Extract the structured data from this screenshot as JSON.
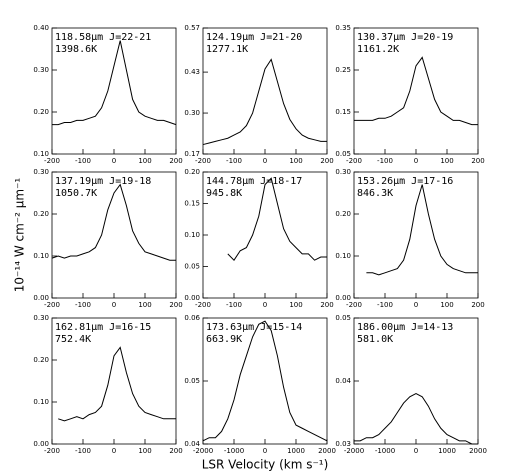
{
  "y_label": "10⁻¹⁴ W cm⁻² μm⁻¹",
  "x_label": "LSR Velocity (km s⁻¹)",
  "chart_data": [
    {
      "type": "line",
      "title": "118.58μm J=22-21",
      "subtitle": "1398.6K",
      "color": "#000000",
      "x": [
        -200,
        -180,
        -160,
        -140,
        -120,
        -100,
        -80,
        -60,
        -40,
        -20,
        0,
        20,
        40,
        60,
        80,
        100,
        120,
        140,
        160,
        180,
        200
      ],
      "values": [
        0.17,
        0.17,
        0.175,
        0.175,
        0.18,
        0.18,
        0.185,
        0.19,
        0.21,
        0.25,
        0.31,
        0.37,
        0.3,
        0.23,
        0.2,
        0.19,
        0.185,
        0.18,
        0.18,
        0.175,
        0.17
      ],
      "xlim": [
        -200,
        200
      ],
      "ylim": [
        0.1,
        0.4
      ],
      "xticks": [
        -200,
        -100,
        0,
        100,
        200
      ],
      "yticks": [
        {
          "value": 0.1,
          "label": "0.10"
        },
        {
          "value": 0.2,
          "label": "0.20"
        },
        {
          "value": 0.3,
          "label": "0.30"
        },
        {
          "value": 0.4,
          "label": "0.40"
        }
      ]
    },
    {
      "type": "line",
      "title": "124.19μm J=21-20",
      "subtitle": "1277.1K",
      "color": "#000000",
      "x": [
        -200,
        -180,
        -160,
        -140,
        -120,
        -100,
        -80,
        -60,
        -40,
        -20,
        0,
        20,
        40,
        60,
        80,
        100,
        120,
        140,
        160,
        180,
        200
      ],
      "values": [
        0.2,
        0.205,
        0.21,
        0.215,
        0.22,
        0.23,
        0.24,
        0.26,
        0.3,
        0.37,
        0.44,
        0.47,
        0.4,
        0.33,
        0.28,
        0.25,
        0.23,
        0.22,
        0.215,
        0.21,
        0.21
      ],
      "xlim": [
        -200,
        200
      ],
      "ylim": [
        0.17,
        0.57
      ],
      "xticks": [
        -200,
        -100,
        0,
        100,
        200
      ],
      "yticks": [
        0.17,
        {
          "value": 0.3,
          "label": "0.30"
        },
        0.43,
        0.57
      ]
    },
    {
      "type": "line",
      "title": "130.37μm J=20-19",
      "subtitle": "1161.2K",
      "color": "#000000",
      "x": [
        -200,
        -180,
        -160,
        -140,
        -120,
        -100,
        -80,
        -60,
        -40,
        -20,
        0,
        20,
        40,
        60,
        80,
        100,
        120,
        140,
        160,
        180,
        200
      ],
      "values": [
        0.13,
        0.13,
        0.13,
        0.13,
        0.135,
        0.135,
        0.14,
        0.15,
        0.16,
        0.2,
        0.26,
        0.28,
        0.23,
        0.18,
        0.15,
        0.14,
        0.13,
        0.13,
        0.125,
        0.12,
        0.12
      ],
      "xlim": [
        -200,
        200
      ],
      "ylim": [
        0.05,
        0.35
      ],
      "xticks": [
        -200,
        -100,
        0,
        100,
        200
      ],
      "yticks": [
        0.05,
        0.15,
        0.25,
        0.35
      ]
    },
    {
      "type": "line",
      "title": "137.19μm J=19-18",
      "subtitle": "1050.7K",
      "color": "#000000",
      "x": [
        -200,
        -180,
        -160,
        -140,
        -120,
        -100,
        -80,
        -60,
        -40,
        -20,
        0,
        20,
        40,
        60,
        80,
        100,
        120,
        140,
        160,
        180,
        200
      ],
      "values": [
        0.095,
        0.1,
        0.095,
        0.1,
        0.1,
        0.105,
        0.11,
        0.12,
        0.15,
        0.21,
        0.25,
        0.27,
        0.22,
        0.16,
        0.13,
        0.11,
        0.105,
        0.1,
        0.095,
        0.09,
        0.09
      ],
      "xlim": [
        -200,
        200
      ],
      "ylim": [
        0,
        0.3
      ],
      "xticks": [
        -200,
        -100,
        0,
        100,
        200
      ],
      "yticks": [
        {
          "value": 0,
          "label": "0.00"
        },
        {
          "value": 0.1,
          "label": "0.10"
        },
        {
          "value": 0.2,
          "label": "0.20"
        },
        {
          "value": 0.3,
          "label": "0.30"
        }
      ]
    },
    {
      "type": "line",
      "title": "144.78μm J=18-17",
      "subtitle": "945.8K",
      "color": "#000000",
      "x": [
        -120,
        -100,
        -80,
        -60,
        -40,
        -20,
        0,
        20,
        40,
        60,
        80,
        100,
        120,
        140,
        160,
        180,
        200
      ],
      "values": [
        0.07,
        0.06,
        0.075,
        0.08,
        0.1,
        0.13,
        0.18,
        0.19,
        0.15,
        0.11,
        0.09,
        0.08,
        0.07,
        0.07,
        0.06,
        0.065,
        0.065
      ],
      "xlim": [
        -200,
        200
      ],
      "ylim": [
        0,
        0.2
      ],
      "xticks": [
        -200,
        -100,
        0,
        100,
        200
      ],
      "yticks": [
        {
          "value": 0,
          "label": "0.00"
        },
        0.05,
        {
          "value": 0.1,
          "label": "0.10"
        },
        0.15,
        {
          "value": 0.2,
          "label": "0.20"
        }
      ]
    },
    {
      "type": "line",
      "title": "153.26μm J=17-16",
      "subtitle": "846.3K",
      "color": "#000000",
      "x": [
        -160,
        -140,
        -120,
        -100,
        -80,
        -60,
        -40,
        -20,
        0,
        20,
        40,
        60,
        80,
        100,
        120,
        140,
        160,
        180,
        200
      ],
      "values": [
        0.06,
        0.06,
        0.055,
        0.06,
        0.065,
        0.07,
        0.09,
        0.14,
        0.22,
        0.27,
        0.2,
        0.14,
        0.1,
        0.08,
        0.07,
        0.065,
        0.06,
        0.06,
        0.06
      ],
      "xlim": [
        -200,
        200
      ],
      "ylim": [
        0,
        0.3
      ],
      "xticks": [
        -200,
        -100,
        0,
        100,
        200
      ],
      "yticks": [
        {
          "value": 0,
          "label": "0.00"
        },
        {
          "value": 0.1,
          "label": "0.10"
        },
        {
          "value": 0.2,
          "label": "0.20"
        },
        {
          "value": 0.3,
          "label": "0.30"
        }
      ]
    },
    {
      "type": "line",
      "title": "162.81μm J=16-15",
      "subtitle": "752.4K",
      "color": "#000000",
      "x": [
        -180,
        -160,
        -140,
        -120,
        -100,
        -80,
        -60,
        -40,
        -20,
        0,
        20,
        40,
        60,
        80,
        100,
        120,
        140,
        160,
        180,
        200
      ],
      "values": [
        0.06,
        0.055,
        0.06,
        0.065,
        0.06,
        0.07,
        0.075,
        0.09,
        0.14,
        0.21,
        0.23,
        0.17,
        0.12,
        0.09,
        0.075,
        0.07,
        0.065,
        0.06,
        0.06,
        0.06
      ],
      "xlim": [
        -200,
        200
      ],
      "ylim": [
        0,
        0.3
      ],
      "xticks": [
        -200,
        -100,
        0,
        100,
        200
      ],
      "yticks": [
        {
          "value": 0,
          "label": "0.00"
        },
        {
          "value": 0.1,
          "label": "0.10"
        },
        {
          "value": 0.2,
          "label": "0.20"
        },
        {
          "value": 0.3,
          "label": "0.30"
        }
      ]
    },
    {
      "type": "line",
      "title": "173.63μm J=15-14",
      "subtitle": "663.9K",
      "color": "#000000",
      "x": [
        -2000,
        -1800,
        -1600,
        -1400,
        -1200,
        -1000,
        -800,
        -600,
        -400,
        -200,
        0,
        200,
        400,
        600,
        800,
        1000,
        1200,
        1400,
        1600,
        1800,
        2000
      ],
      "values": [
        0.0405,
        0.041,
        0.041,
        0.042,
        0.044,
        0.047,
        0.051,
        0.054,
        0.057,
        0.059,
        0.0595,
        0.058,
        0.054,
        0.049,
        0.045,
        0.043,
        0.0425,
        0.042,
        0.0415,
        0.041,
        0.0405
      ],
      "xlim": [
        -2000,
        2000
      ],
      "ylim": [
        0.04,
        0.06
      ],
      "xticks": [
        -2000,
        -1000,
        0,
        1000,
        2000
      ],
      "yticks": [
        0.04,
        0.05,
        0.06
      ]
    },
    {
      "type": "line",
      "title": "186.00μm J=14-13",
      "subtitle": "581.0K",
      "color": "#000000",
      "x": [
        -2000,
        -1800,
        -1600,
        -1400,
        -1200,
        -1000,
        -800,
        -600,
        -400,
        -200,
        0,
        200,
        400,
        600,
        800,
        1000,
        1200,
        1400,
        1600,
        1800,
        2000
      ],
      "values": [
        0.0305,
        0.0305,
        0.031,
        0.031,
        0.0315,
        0.0325,
        0.0335,
        0.035,
        0.0365,
        0.0375,
        0.038,
        0.0375,
        0.036,
        0.034,
        0.0325,
        0.0315,
        0.031,
        0.0305,
        0.0305,
        0.03,
        0.03
      ],
      "xlim": [
        -2000,
        2000
      ],
      "ylim": [
        0.03,
        0.05
      ],
      "xticks": [
        -2000,
        -1000,
        0,
        1000,
        2000
      ],
      "yticks": [
        0.03,
        0.04,
        0.05
      ]
    }
  ]
}
